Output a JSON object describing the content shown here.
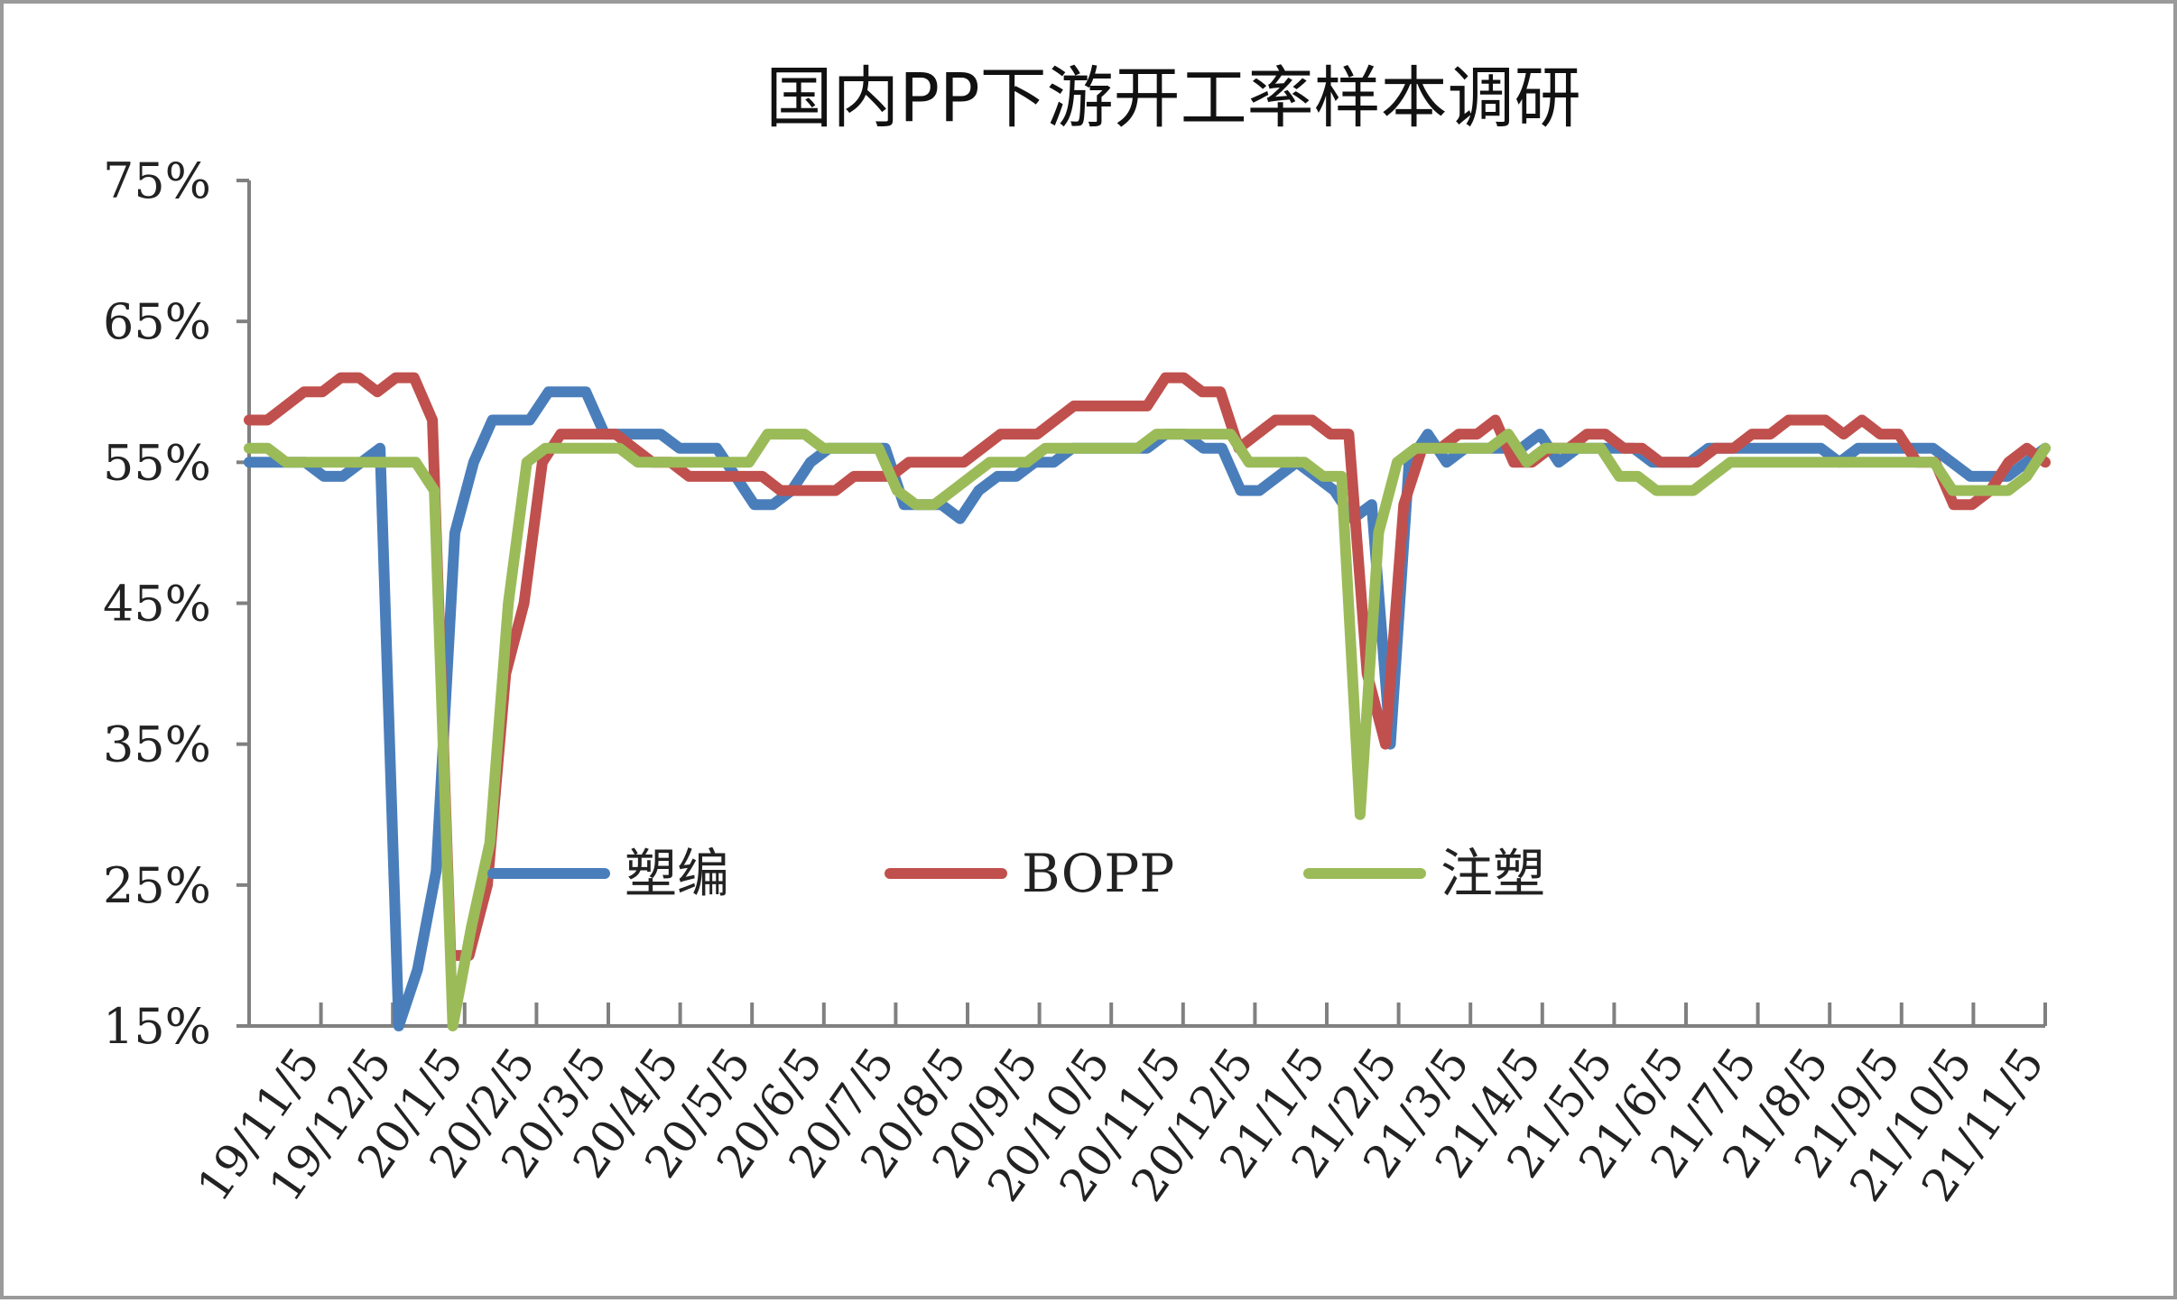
{
  "chart_data": {
    "type": "line",
    "title": "国内PP下游开工率样本调研",
    "xlabel": "",
    "ylabel": "",
    "ylim": [
      15,
      75
    ],
    "y_ticks": [
      "15%",
      "25%",
      "35%",
      "45%",
      "55%",
      "65%",
      "75%"
    ],
    "x_tick_labels": [
      "19/11/5",
      "19/12/5",
      "20/1/5",
      "20/2/5",
      "20/3/5",
      "20/4/5",
      "20/5/5",
      "20/6/5",
      "20/7/5",
      "20/8/5",
      "20/9/5",
      "20/10/5",
      "20/11/5",
      "20/12/5",
      "21/1/5",
      "21/2/5",
      "21/3/5",
      "21/4/5",
      "21/5/5",
      "21/6/5",
      "21/7/5",
      "21/8/5",
      "21/9/5",
      "21/10/5",
      "21/11/5"
    ],
    "grid": false,
    "legend_position": "center",
    "series": [
      {
        "name": "塑编",
        "color": "#4a7ebb",
        "values": [
          55,
          55,
          55,
          55,
          54,
          54,
          55,
          56,
          15,
          19,
          26,
          50,
          55,
          58,
          58,
          58,
          60,
          60,
          60,
          57,
          57,
          57,
          57,
          56,
          56,
          56,
          54,
          52,
          52,
          53,
          55,
          56,
          56,
          56,
          56,
          52,
          52,
          52,
          51,
          53,
          54,
          54,
          55,
          55,
          56,
          56,
          56,
          56,
          56,
          57,
          57,
          56,
          56,
          53,
          53,
          54,
          55,
          54,
          53,
          51,
          52,
          35,
          55,
          57,
          55,
          56,
          56,
          56,
          56,
          57,
          55,
          56,
          56,
          56,
          56,
          55,
          55,
          55,
          56,
          56,
          56,
          56,
          56,
          56,
          56,
          55,
          56,
          56,
          56,
          56,
          56,
          55,
          54,
          54,
          54,
          55,
          56
        ]
      },
      {
        "name": "BOPP",
        "color": "#c0504d",
        "values": [
          58,
          58,
          59,
          60,
          60,
          61,
          61,
          60,
          61,
          61,
          58,
          20,
          20,
          25,
          40,
          45,
          55,
          57,
          57,
          57,
          57,
          56,
          55,
          55,
          54,
          54,
          54,
          54,
          54,
          53,
          53,
          53,
          53,
          54,
          54,
          54,
          55,
          55,
          55,
          55,
          56,
          57,
          57,
          57,
          58,
          59,
          59,
          59,
          59,
          59,
          61,
          61,
          60,
          60,
          56,
          57,
          58,
          58,
          58,
          57,
          57,
          40,
          35,
          52,
          56,
          56,
          57,
          57,
          58,
          55,
          55,
          56,
          56,
          57,
          57,
          56,
          56,
          55,
          55,
          55,
          56,
          56,
          57,
          57,
          58,
          58,
          58,
          57,
          58,
          57,
          57,
          55,
          55,
          52,
          52,
          53,
          55,
          56,
          55
        ]
      },
      {
        "name": "注塑",
        "color": "#9bbb59",
        "values": [
          56,
          56,
          55,
          55,
          55,
          55,
          55,
          55,
          55,
          55,
          53,
          15,
          22,
          28,
          45,
          55,
          56,
          56,
          56,
          56,
          56,
          55,
          55,
          55,
          55,
          55,
          55,
          55,
          57,
          57,
          57,
          56,
          56,
          56,
          56,
          53,
          52,
          52,
          53,
          54,
          55,
          55,
          55,
          56,
          56,
          56,
          56,
          56,
          56,
          57,
          57,
          57,
          57,
          57,
          55,
          55,
          55,
          55,
          54,
          54,
          30,
          50,
          55,
          56,
          56,
          56,
          56,
          56,
          57,
          55,
          56,
          56,
          56,
          56,
          54,
          54,
          53,
          53,
          53,
          54,
          55,
          55,
          55,
          55,
          55,
          55,
          55,
          55,
          55,
          55,
          55,
          55,
          53,
          53,
          53,
          53,
          54,
          56
        ]
      }
    ]
  }
}
